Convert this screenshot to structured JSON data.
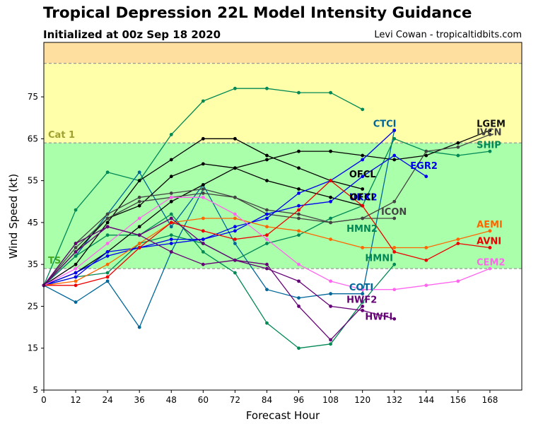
{
  "header": {
    "title": "Tropical Depression 22L Model Intensity Guidance",
    "subtitle": "Initialized at 00z Sep 18 2020",
    "credit": "Levi Cowan - tropicaltidbits.com"
  },
  "chart_data": {
    "type": "line",
    "xlabel": "Forecast Hour",
    "ylabel": "Wind Speed (kt)",
    "xlim": [
      0,
      180
    ],
    "ylim": [
      5,
      88
    ],
    "xticks": [
      0,
      12,
      24,
      36,
      48,
      60,
      72,
      84,
      96,
      108,
      120,
      132,
      144,
      156,
      168
    ],
    "yticks": [
      5,
      15,
      25,
      35,
      45,
      55,
      65,
      75
    ],
    "bands": [
      {
        "label": "",
        "from": 83,
        "to": 88,
        "color": "#ffdfa0"
      },
      {
        "label": "Cat 1",
        "from": 64,
        "to": 83,
        "color": "#ffffaa",
        "label_color": "#a0a030"
      },
      {
        "label": "TS",
        "from": 34,
        "to": 64,
        "color": "#aaffaa",
        "label_color": "#44aa22"
      }
    ],
    "series": [
      {
        "name": "CTCI",
        "color": "#006699",
        "x": [
          0,
          12,
          24,
          36,
          48,
          60,
          72,
          84,
          96,
          108,
          120,
          132
        ],
        "y": [
          30,
          37,
          47,
          57,
          44,
          54,
          40,
          29,
          27,
          28,
          28,
          67
        ]
      },
      {
        "name": "COTI",
        "color": "#006699",
        "x": [
          0,
          12,
          24,
          36,
          48,
          60
        ],
        "y": [
          30,
          26,
          31,
          20,
          38,
          53
        ]
      },
      {
        "name": "HMN2",
        "color": "#008855",
        "x": [
          0,
          12,
          24,
          36,
          48,
          60,
          72,
          84,
          96,
          108,
          120
        ],
        "y": [
          30,
          48,
          57,
          55,
          66,
          74,
          77,
          77,
          76,
          76,
          72
        ]
      },
      {
        "name": "HMNI",
        "color": "#008855",
        "x": [
          0,
          12,
          24,
          36,
          48,
          60,
          72,
          84,
          96,
          108,
          120,
          132
        ],
        "y": [
          30,
          37,
          42,
          42,
          47,
          38,
          33,
          21,
          15,
          16,
          26,
          35
        ]
      },
      {
        "name": "SHIP",
        "color": "#008855",
        "x": [
          0,
          12,
          24,
          36,
          48,
          60,
          72,
          84,
          96,
          108,
          120,
          132,
          144,
          156,
          168
        ],
        "y": [
          30,
          32,
          33,
          40,
          42,
          40,
          36,
          40,
          42,
          46,
          49,
          65,
          62,
          61,
          62
        ]
      },
      {
        "name": "LGEM",
        "color": "#000000",
        "x": [
          0,
          12,
          24,
          36,
          48,
          60,
          72,
          84,
          96,
          108,
          120,
          132,
          144,
          156,
          168
        ],
        "y": [
          30,
          33,
          38,
          44,
          50,
          54,
          58,
          60,
          62,
          62,
          61,
          60,
          61,
          64,
          67
        ]
      },
      {
        "name": "OFCL",
        "color": "#000000",
        "x": [
          0,
          12,
          24,
          36,
          48,
          60,
          72,
          84,
          96,
          108,
          120
        ],
        "y": [
          30,
          35,
          45,
          55,
          60,
          65,
          65,
          61,
          58,
          55,
          53
        ]
      },
      {
        "name": "OFCI",
        "color": "#000000",
        "x": [
          0,
          12,
          24,
          36,
          48,
          60,
          72,
          84,
          96,
          108,
          120
        ],
        "y": [
          30,
          38,
          46,
          49,
          56,
          59,
          58,
          55,
          53,
          51,
          49
        ]
      },
      {
        "name": "IVCN",
        "color": "#444444",
        "x": [
          0,
          12,
          24,
          36,
          48,
          60,
          72,
          84,
          96,
          108,
          120,
          132,
          144,
          156,
          168
        ],
        "y": [
          30,
          40,
          47,
          51,
          52,
          53,
          51,
          48,
          47,
          45,
          46,
          50,
          62,
          63,
          66
        ]
      },
      {
        "name": "ICON",
        "color": "#444444",
        "x": [
          0,
          12,
          24,
          36,
          48,
          60,
          72,
          84,
          96,
          108,
          120,
          132
        ],
        "y": [
          30,
          39,
          46,
          50,
          51,
          52,
          51,
          47,
          46,
          45,
          46,
          46
        ]
      },
      {
        "name": "EGR2",
        "color": "#0000ee",
        "x": [
          0,
          12,
          24,
          36,
          48,
          60,
          72,
          84,
          96,
          108,
          120,
          132,
          144
        ],
        "y": [
          30,
          33,
          37,
          39,
          40,
          41,
          43,
          47,
          49,
          50,
          56,
          61,
          56
        ]
      },
      {
        "name": "UKX2",
        "color": "#0000ee",
        "x": [
          0,
          12,
          24,
          36,
          48,
          60,
          72,
          84,
          96,
          108,
          120,
          132
        ],
        "y": [
          30,
          32,
          38,
          39,
          41,
          41,
          44,
          46,
          52,
          55,
          60,
          67
        ]
      },
      {
        "name": "AEMI",
        "color": "#ff6600",
        "x": [
          0,
          12,
          24,
          36,
          48,
          60,
          72,
          84,
          96,
          108,
          120,
          132,
          144,
          156,
          168
        ],
        "y": [
          30,
          31,
          35,
          40,
          45,
          46,
          46,
          44,
          43,
          41,
          39,
          39,
          39,
          41,
          43
        ]
      },
      {
        "name": "AVNI",
        "color": "#ee0000",
        "x": [
          0,
          12,
          24,
          36,
          48,
          60,
          72,
          84,
          96,
          108,
          120,
          132,
          144,
          156,
          168
        ],
        "y": [
          30,
          30,
          32,
          39,
          45,
          43,
          41,
          42,
          48,
          55,
          49,
          38,
          36,
          40,
          39
        ]
      },
      {
        "name": "CEM2",
        "color": "#ff66ee",
        "x": [
          0,
          12,
          24,
          36,
          48,
          60,
          72,
          84,
          96,
          108,
          120,
          132,
          144,
          156,
          168
        ],
        "y": [
          30,
          34,
          40,
          46,
          51,
          51,
          47,
          41,
          35,
          31,
          29,
          29,
          30,
          31,
          34
        ]
      },
      {
        "name": "HWF2",
        "color": "#660077",
        "x": [
          0,
          12,
          24,
          36,
          48,
          60,
          72,
          84,
          96,
          108,
          120
        ],
        "y": [
          30,
          40,
          44,
          42,
          38,
          35,
          36,
          35,
          25,
          17,
          25
        ]
      },
      {
        "name": "HWFI",
        "color": "#660077",
        "x": [
          0,
          12,
          24,
          36,
          48,
          60,
          72,
          84,
          96,
          108,
          120,
          132
        ],
        "y": [
          30,
          38,
          44,
          42,
          46,
          40,
          36,
          34,
          31,
          25,
          24,
          22
        ]
      }
    ],
    "labels": [
      {
        "text": "CTCI",
        "x": 124,
        "y": 67.8,
        "color": "#006699"
      },
      {
        "text": "LGEM",
        "x": 163,
        "y": 67.8,
        "color": "#111111"
      },
      {
        "text": "IVCN",
        "x": 163,
        "y": 65.8,
        "color": "#444444"
      },
      {
        "text": "SHIP",
        "x": 163,
        "y": 62.8,
        "color": "#008855"
      },
      {
        "text": "EGR2",
        "x": 138,
        "y": 57.8,
        "color": "#0000ee"
      },
      {
        "text": "OFCL",
        "x": 115,
        "y": 55.8,
        "color": "#000000"
      },
      {
        "text": "UKX2",
        "x": 115,
        "y": 50.3,
        "color": "#0000ee"
      },
      {
        "text": "OFCI",
        "x": 115.3,
        "y": 50.3,
        "color": "#000000"
      },
      {
        "text": "ICON",
        "x": 127,
        "y": 46.8,
        "color": "#444444"
      },
      {
        "text": "HMN2",
        "x": 114,
        "y": 42.8,
        "color": "#008855"
      },
      {
        "text": "AEMI",
        "x": 163,
        "y": 43.8,
        "color": "#ff6600"
      },
      {
        "text": "AVNI",
        "x": 163,
        "y": 39.8,
        "color": "#ee0000"
      },
      {
        "text": "HMNI",
        "x": 121,
        "y": 35.8,
        "color": "#008855"
      },
      {
        "text": "CEM2",
        "x": 163,
        "y": 34.8,
        "color": "#ff66ee"
      },
      {
        "text": "COTI",
        "x": 115,
        "y": 28.8,
        "color": "#006699"
      },
      {
        "text": "HWF2",
        "x": 114,
        "y": 25.8,
        "color": "#660077"
      },
      {
        "text": "HWFI",
        "x": 121,
        "y": 21.8,
        "color": "#660077"
      }
    ]
  }
}
